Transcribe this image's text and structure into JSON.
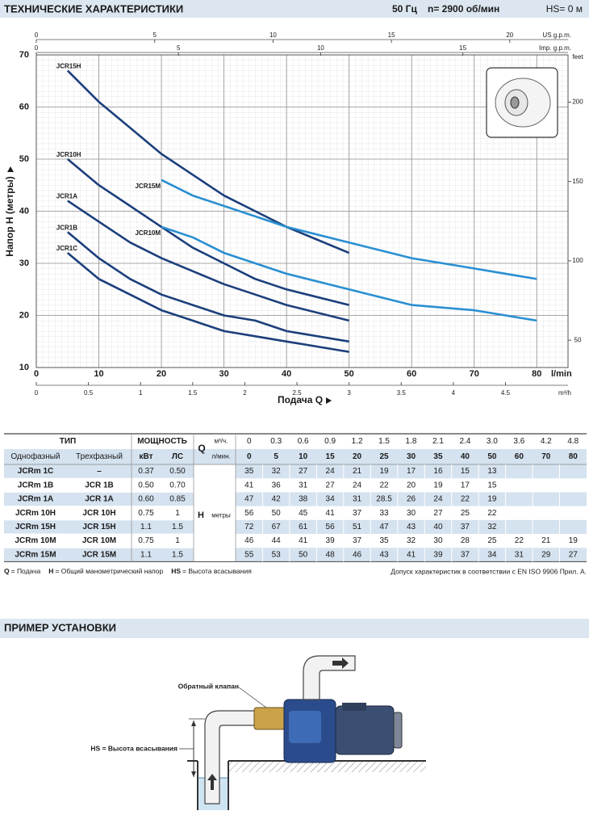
{
  "header": {
    "title": "ТЕХНИЧЕСКИЕ ХАРАКТЕРИСТИКИ",
    "frequency": "50 Гц",
    "speed": "n= 2900 об/мин",
    "suction_height": "HS= 0 м"
  },
  "chart_data": {
    "type": "line",
    "y_label": "Напор H (метры)",
    "x_label": "Подача Q",
    "x_unit": "l/min",
    "xlim": [
      0,
      85
    ],
    "xticks": [
      0,
      10,
      20,
      30,
      40,
      50,
      60,
      70,
      80
    ],
    "ylim": [
      10,
      70
    ],
    "yticks": [
      10,
      20,
      30,
      40,
      50,
      60,
      70
    ],
    "grid": true,
    "secondary_axes": [
      {
        "label": "US g.p.m.",
        "position": "top",
        "lim": [
          0,
          22.46
        ],
        "ticks": [
          0,
          5,
          10,
          15,
          20
        ]
      },
      {
        "label": "Imp. g.p.m.",
        "position": "top",
        "lim": [
          0,
          18.7
        ],
        "ticks": [
          0,
          5,
          10,
          15
        ]
      },
      {
        "label": "m³/h",
        "position": "bottom",
        "lim": [
          0,
          5.1
        ],
        "ticks": [
          0,
          0.5,
          1,
          1.5,
          2,
          2.5,
          3,
          3.5,
          4,
          4.5
        ]
      },
      {
        "label": "feet",
        "position": "right",
        "lim": [
          32.8,
          229.7
        ],
        "ticks": [
          50,
          100,
          150,
          200
        ]
      }
    ],
    "series": [
      {
        "name": "JCR15H",
        "color": "#1c3f7c",
        "x": [
          5,
          10,
          15,
          20,
          25,
          30,
          35,
          40,
          50
        ],
        "values": [
          67,
          61,
          56,
          51,
          47,
          43,
          40,
          37,
          32
        ]
      },
      {
        "name": "JCR10H",
        "color": "#1c3f7c",
        "x": [
          5,
          10,
          15,
          20,
          25,
          30,
          35,
          40,
          50
        ],
        "values": [
          50,
          45,
          41,
          37,
          33,
          30,
          27,
          25,
          22
        ]
      },
      {
        "name": "JCR1A",
        "color": "#1c3f7c",
        "x": [
          5,
          10,
          15,
          20,
          25,
          30,
          35,
          40,
          50
        ],
        "values": [
          42,
          38,
          34,
          31,
          28.5,
          26,
          24,
          22,
          19
        ]
      },
      {
        "name": "JCR1B",
        "color": "#1c3f7c",
        "x": [
          5,
          10,
          15,
          20,
          25,
          30,
          35,
          40,
          50
        ],
        "values": [
          36,
          31,
          27,
          24,
          22,
          20,
          19,
          17,
          15
        ]
      },
      {
        "name": "JCR1C",
        "color": "#1c3f7c",
        "x": [
          5,
          10,
          15,
          20,
          25,
          30,
          35,
          40,
          50
        ],
        "values": [
          32,
          27,
          24,
          21,
          19,
          17,
          16,
          15,
          13
        ]
      },
      {
        "name": "JCR15M",
        "color": "#2a8fd2",
        "x": [
          20,
          25,
          30,
          35,
          40,
          50,
          60,
          70,
          80
        ],
        "values": [
          46,
          43,
          41,
          39,
          37,
          34,
          31,
          29,
          27
        ]
      },
      {
        "name": "JCR10M",
        "color": "#2a8fd2",
        "x": [
          20,
          25,
          30,
          35,
          40,
          50,
          60,
          70,
          80
        ],
        "values": [
          37,
          35,
          32,
          30,
          28,
          25,
          22,
          21,
          19
        ]
      }
    ]
  },
  "table": {
    "header": {
      "type": "ТИП",
      "power": "МОЩНОСТЬ",
      "q": "Q",
      "q_m3h_unit": "м³/ч.",
      "q_lmin_unit": "л/мин.",
      "single_phase": "Однофазный",
      "three_phase": "Трехфазный",
      "kw": "кВт",
      "hp": "ЛС",
      "h": "H",
      "h_unit": "метры"
    },
    "q_m3h": [
      "0",
      "0.3",
      "0.6",
      "0.9",
      "1.2",
      "1.5",
      "1.8",
      "2.1",
      "2.4",
      "3.0",
      "3.6",
      "4.2",
      "4.8"
    ],
    "q_lmin": [
      "0",
      "5",
      "10",
      "15",
      "20",
      "25",
      "30",
      "35",
      "40",
      "50",
      "60",
      "70",
      "80"
    ],
    "rows": [
      {
        "single": "JCRm 1C",
        "three": "–",
        "kw": "0.37",
        "hp": "0.50",
        "h": [
          "35",
          "32",
          "27",
          "24",
          "21",
          "19",
          "17",
          "16",
          "15",
          "13"
        ]
      },
      {
        "single": "JCRm 1B",
        "three": "JCR 1B",
        "kw": "0.50",
        "hp": "0.70",
        "h": [
          "41",
          "36",
          "31",
          "27",
          "24",
          "22",
          "20",
          "19",
          "17",
          "15"
        ]
      },
      {
        "single": "JCRm 1A",
        "three": "JCR 1A",
        "kw": "0.60",
        "hp": "0.85",
        "h": [
          "47",
          "42",
          "38",
          "34",
          "31",
          "28.5",
          "26",
          "24",
          "22",
          "19"
        ]
      },
      {
        "single": "JCRm 10H",
        "three": "JCR 10H",
        "kw": "0.75",
        "hp": "1",
        "h": [
          "56",
          "50",
          "45",
          "41",
          "37",
          "33",
          "30",
          "27",
          "25",
          "22"
        ]
      },
      {
        "single": "JCRm 15H",
        "three": "JCR 15H",
        "kw": "1.1",
        "hp": "1.5",
        "h": [
          "72",
          "67",
          "61",
          "56",
          "51",
          "47",
          "43",
          "40",
          "37",
          "32"
        ]
      },
      {
        "single": "JCRm 10M",
        "three": "JCR 10M",
        "kw": "0.75",
        "hp": "1",
        "h": [
          "46",
          "44",
          "41",
          "39",
          "37",
          "35",
          "32",
          "30",
          "28",
          "25",
          "22",
          "21",
          "19"
        ]
      },
      {
        "single": "JCRm 15M",
        "three": "JCR 15M",
        "kw": "1.1",
        "hp": "1.5",
        "h": [
          "55",
          "53",
          "50",
          "48",
          "46",
          "43",
          "41",
          "39",
          "37",
          "34",
          "31",
          "29",
          "27"
        ]
      }
    ]
  },
  "notes": {
    "items": [
      {
        "key": "Q",
        "text": "= Подача"
      },
      {
        "key": "H",
        "text": "= Общий манометрический напор"
      },
      {
        "key": "HS",
        "text": "= Высота всасывания"
      }
    ],
    "tolerance": "Допуск характеристик в соответствии с EN ISO 9906 Прил. A."
  },
  "installation": {
    "title": "ПРИМЕР УСТАНОВКИ",
    "valve_label": "Обратный клапан",
    "hs_label": "HS = Высота всасывания"
  }
}
